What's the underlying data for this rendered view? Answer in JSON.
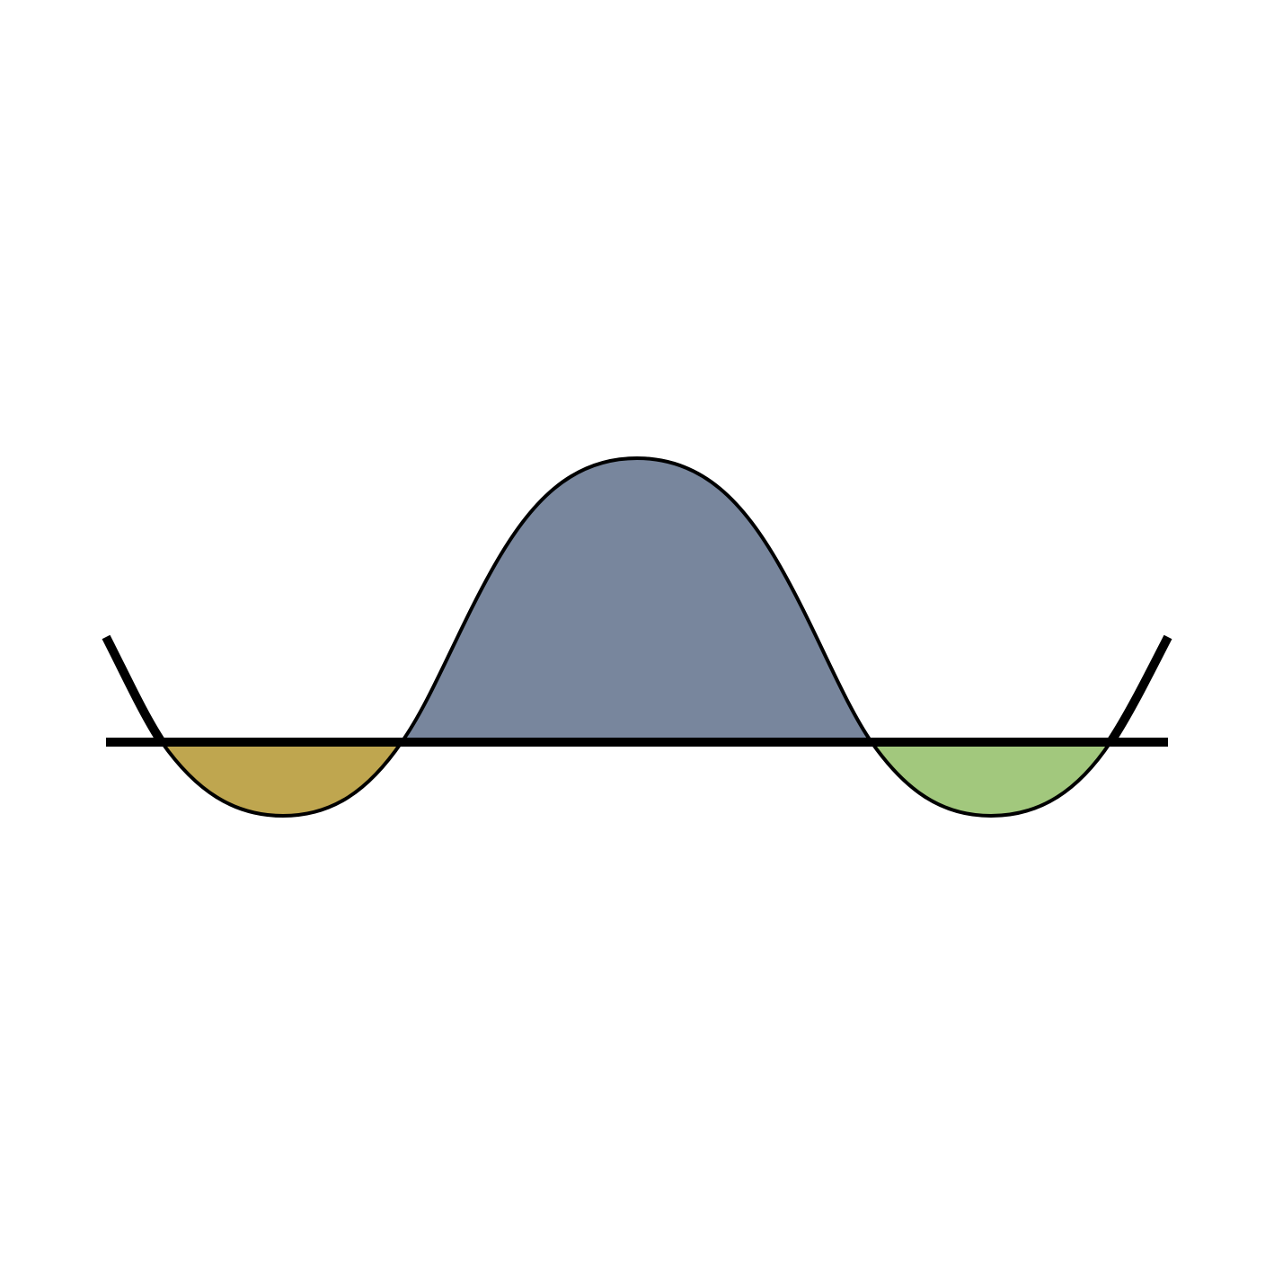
{
  "diagram": {
    "background": "#ffffff",
    "stroke_color": "#000000",
    "regions": [
      {
        "name": "left-trough",
        "fill": "#bfa64f"
      },
      {
        "name": "central-hump",
        "fill": "#78869d"
      },
      {
        "name": "right-trough",
        "fill": "#a2c87d"
      }
    ]
  }
}
